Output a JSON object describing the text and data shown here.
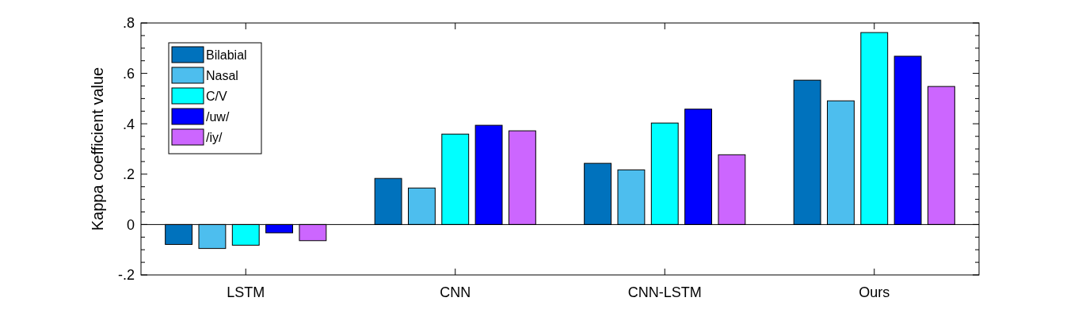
{
  "chart_data": {
    "type": "bar",
    "ylabel": "Kappa coefficient value",
    "categories": [
      "LSTM",
      "CNN",
      "CNN-LSTM",
      "Ours"
    ],
    "series": [
      {
        "name": "Bilabial",
        "color": "#0072bd",
        "values": [
          -0.079,
          0.183,
          0.243,
          0.573
        ]
      },
      {
        "name": "Nasal",
        "color": "#4dbeee",
        "values": [
          -0.095,
          0.145,
          0.217,
          0.491
        ]
      },
      {
        "name": "C/V",
        "color": "#00ffff",
        "values": [
          -0.082,
          0.359,
          0.403,
          0.762
        ]
      },
      {
        "name": "/uw/",
        "color": "#0000ff",
        "values": [
          -0.033,
          0.394,
          0.458,
          0.668
        ]
      },
      {
        "name": "/iy/",
        "color": "#cc66ff",
        "values": [
          -0.064,
          0.372,
          0.277,
          0.548
        ]
      }
    ],
    "ylim": [
      -0.2,
      0.8
    ],
    "yticks": [
      {
        "value": -0.2,
        "label": "-.2"
      },
      {
        "value": -0.15,
        "label": null
      },
      {
        "value": -0.1,
        "label": null
      },
      {
        "value": -0.05,
        "label": null
      },
      0,
      {
        "value": 0.05,
        "label": null
      },
      {
        "value": 0.1,
        "label": null
      },
      {
        "value": 0.15,
        "label": null
      },
      {
        "value": 0.2,
        "label": ".2"
      },
      {
        "value": 0.25,
        "label": null
      },
      {
        "value": 0.3,
        "label": null
      },
      {
        "value": 0.35,
        "label": null
      },
      {
        "value": 0.4,
        "label": ".4"
      },
      {
        "value": 0.45,
        "label": null
      },
      {
        "value": 0.5,
        "label": null
      },
      {
        "value": 0.55,
        "label": null
      },
      {
        "value": 0.6,
        "label": ".6"
      },
      {
        "value": 0.65,
        "label": null
      },
      {
        "value": 0.7,
        "label": null
      },
      {
        "value": 0.75,
        "label": null
      },
      {
        "value": 0.8,
        "label": ".8"
      }
    ],
    "legend": "top left"
  }
}
